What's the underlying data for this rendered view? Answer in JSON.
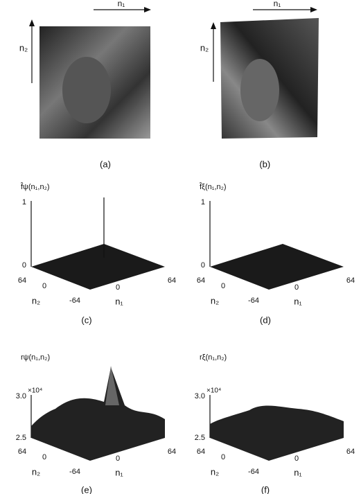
{
  "panels": [
    {
      "label": "(a)",
      "n1": "n₁",
      "n2": "n₂"
    },
    {
      "label": "(b)",
      "n1": "n₁",
      "n2": "n₂"
    },
    {
      "label": "(c)",
      "z_label": "f̂ψ(n₁,n₂)",
      "z_top": "1",
      "z_bottom": "0",
      "n2_max": "64",
      "n2_zero": "0",
      "n2": "n₂",
      "n_min": "-64",
      "n1_zero": "0",
      "n1_max": "64",
      "n1": "n₁"
    },
    {
      "label": "(d)",
      "z_label": "f̂ξ(n₁,n₂)",
      "z_top": "1",
      "z_bottom": "0",
      "n2_max": "64",
      "n2_zero": "0",
      "n2": "n₂",
      "n_min": "-64",
      "n1_zero": "0",
      "n1_max": "64",
      "n1": "n₁"
    },
    {
      "label": "(e)",
      "z_label": "rψ(n₁,n₂)",
      "z_top": "3.0",
      "z_scale": "×10⁴",
      "z_bottom": "2.5",
      "n2_max": "64",
      "n2_zero": "0",
      "n2": "n₂",
      "n_min": "-64",
      "n1_zero": "0",
      "n1_max": "64",
      "n1": "n₁"
    },
    {
      "label": "(f)",
      "z_label": "rξ(n₁,n₂)",
      "z_top": "3.0",
      "z_scale": "×10⁴",
      "z_bottom": "2.5",
      "n2_max": "64",
      "n2_zero": "0",
      "n2": "n₂",
      "n_min": "-64",
      "n1_zero": "0",
      "n1_max": "64",
      "n1": "n₁"
    }
  ]
}
